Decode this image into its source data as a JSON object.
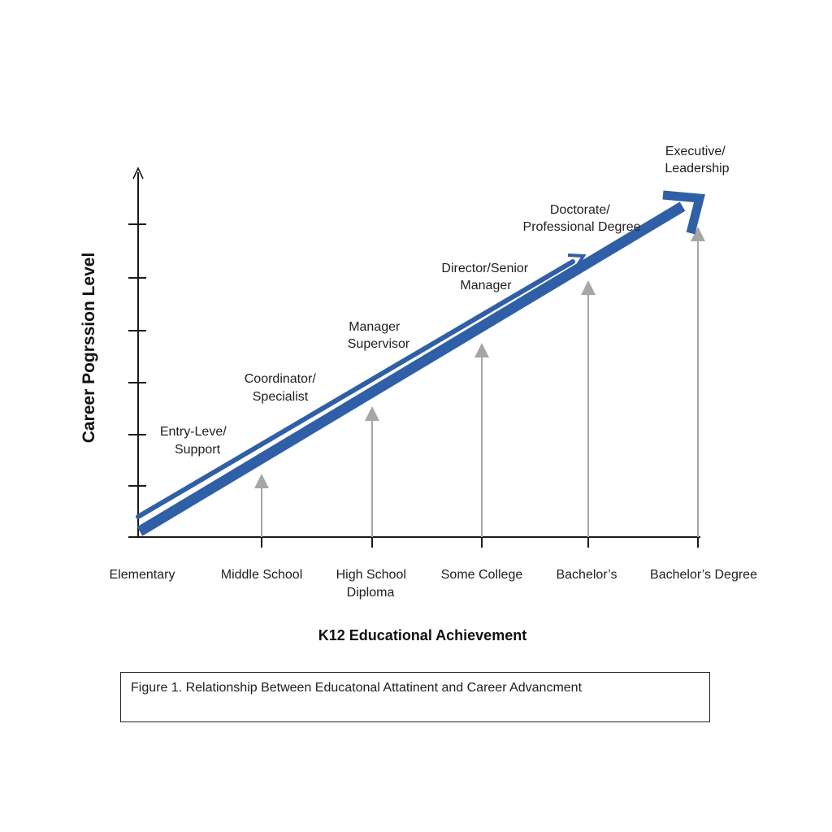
{
  "diagram": {
    "y_axis_label": "Career Pogrssion Level",
    "x_axis_label": "K12 Educational Achievement",
    "x_categories": [
      [
        "Elementary"
      ],
      [
        "Middle School"
      ],
      [
        "High School",
        "Diploma"
      ],
      [
        "Some College"
      ],
      [
        "Bachelor’s"
      ],
      [
        "Bachelor’s Degree"
      ]
    ],
    "career_levels": [
      [
        "Entry-Leve/",
        "Support"
      ],
      [
        "Coordinator/",
        "Specialist"
      ],
      [
        "Manager",
        "Supervisor"
      ],
      [
        "Director/Senior",
        "Manager"
      ],
      [
        "Doctorate/",
        "Professional Degree"
      ],
      [
        "Executive/",
        "Leadership"
      ]
    ],
    "colors": {
      "arrow": "#2f5fa6",
      "axis": "#1a1a1a",
      "level_arrows": "#a6a6a6"
    }
  },
  "caption": "Figure 1. Relationship Between Educatonal Attatinent and Career Advancment"
}
